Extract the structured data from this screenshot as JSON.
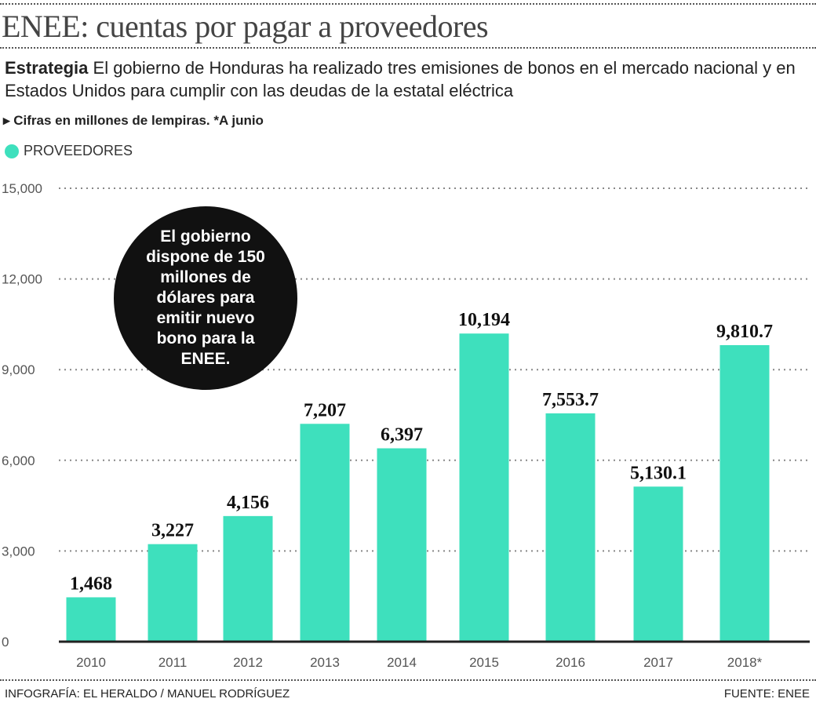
{
  "title": "ENEE: cuentas por pagar a proveedores",
  "subtitle_lead": "Estrategia",
  "subtitle": "El gobierno de Honduras ha realizado tres emisiones de bonos en el mercado nacional y en Estados Unidos para cumplir con las deudas de la estatal eléctrica",
  "note": "Cifras en millones de lempiras.  *A junio",
  "callout": "El gobierno dispone de 150 millones de dólares para emitir nuevo bono para la ENEE.",
  "footer_left": "INFOGRAFÍA: EL HERALDO / MANUEL RODRÍGUEZ",
  "footer_right": "FUENTE: ENEE",
  "chart_data": {
    "type": "bar",
    "categories": [
      "2010",
      "2011",
      "2012",
      "2013",
      "2014",
      "2015",
      "2016",
      "2017",
      "2018*"
    ],
    "series": [
      {
        "name": "PROVEEDORES",
        "values": [
          1468,
          3227,
          4156,
          7207,
          6397,
          10194,
          7553.7,
          5130.1,
          9810.7
        ],
        "color": "#3ee0bd"
      }
    ],
    "data_labels": [
      "1,468",
      "3,227",
      "4,156",
      "7,207",
      "6,397",
      "10,194",
      "7,553.7",
      "5,130.1",
      "9,810.7"
    ],
    "yticks": [
      0,
      3000,
      6000,
      9000,
      12000,
      15000
    ],
    "ytick_labels": [
      "0",
      "3,000",
      "6,000",
      "9,000",
      "12,000",
      "15,000"
    ],
    "ylim": [
      0,
      15000
    ],
    "grid": true,
    "legend": "top-left"
  }
}
